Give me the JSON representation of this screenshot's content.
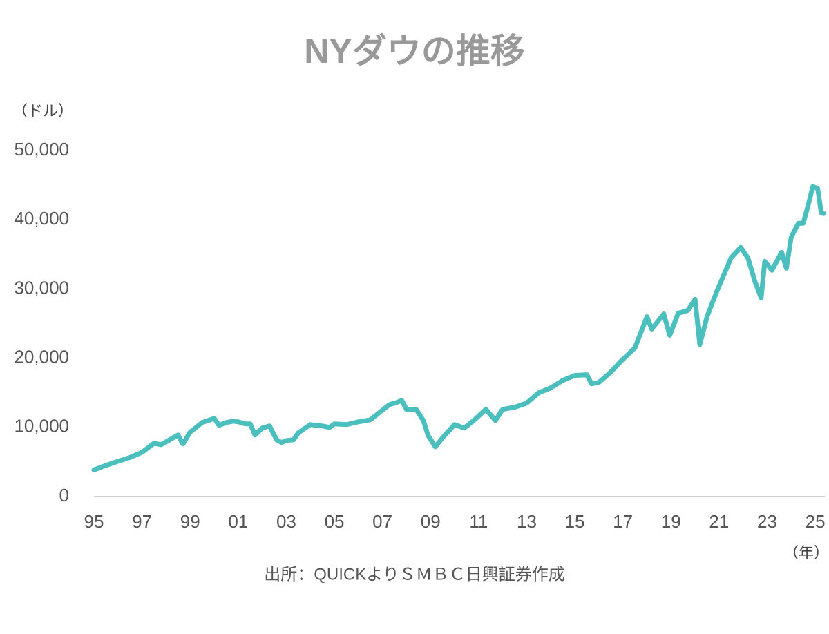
{
  "chart_data": {
    "type": "line",
    "title": "NYダウの推移",
    "y_label": "（ドル）",
    "x_label": "（年）",
    "source": "出所：QUICKよりＳＭＢＣ日興証券作成",
    "color": "#4bbfbe",
    "x": [
      1995.0,
      1995.5,
      1996.0,
      1996.5,
      1997.0,
      1997.5,
      1997.8,
      1998.0,
      1998.5,
      1998.7,
      1999.0,
      1999.5,
      2000.0,
      2000.2,
      2000.5,
      2000.8,
      2001.0,
      2001.3,
      2001.5,
      2001.7,
      2002.0,
      2002.3,
      2002.6,
      2002.8,
      2003.0,
      2003.3,
      2003.5,
      2004.0,
      2004.5,
      2004.8,
      2005.0,
      2005.5,
      2006.0,
      2006.5,
      2007.0,
      2007.3,
      2007.6,
      2007.8,
      2008.0,
      2008.4,
      2008.7,
      2008.9,
      2009.2,
      2009.5,
      2010.0,
      2010.4,
      2010.8,
      2011.3,
      2011.7,
      2012.0,
      2012.5,
      2013.0,
      2013.5,
      2014.0,
      2014.5,
      2015.0,
      2015.5,
      2015.7,
      2016.0,
      2016.5,
      2016.9,
      2017.5,
      2018.0,
      2018.2,
      2018.7,
      2018.95,
      2019.3,
      2019.7,
      2020.0,
      2020.2,
      2020.5,
      2020.9,
      2021.5,
      2021.9,
      2022.2,
      2022.5,
      2022.75,
      2022.9,
      2023.2,
      2023.6,
      2023.8,
      2024.0,
      2024.3,
      2024.5,
      2024.7,
      2024.9,
      2025.1,
      2025.25,
      2025.35
    ],
    "values": [
      3850,
      4500,
      5100,
      5650,
      6400,
      7700,
      7500,
      7900,
      8900,
      7600,
      9300,
      10700,
      11300,
      10300,
      10700,
      10900,
      10800,
      10500,
      10500,
      8900,
      9900,
      10200,
      8200,
      7800,
      8100,
      8200,
      9200,
      10400,
      10200,
      10000,
      10500,
      10400,
      10800,
      11100,
      12500,
      13300,
      13600,
      13900,
      12600,
      12600,
      11000,
      8800,
      7200,
      8500,
      10400,
      9900,
      11000,
      12600,
      11000,
      12600,
      12900,
      13500,
      15000,
      15700,
      16800,
      17500,
      17600,
      16300,
      16500,
      18000,
      19500,
      21500,
      26000,
      24200,
      26400,
      23300,
      26500,
      26900,
      28500,
      22000,
      26000,
      29600,
      34500,
      36000,
      34500,
      31000,
      28700,
      34000,
      32700,
      35300,
      33000,
      37500,
      39500,
      39500,
      42000,
      44800,
      44500,
      41000,
      40900
    ],
    "xlim": [
      1995,
      2025.4
    ],
    "xticks": [
      {
        "value": 1995,
        "label": "95"
      },
      {
        "value": 1997,
        "label": "97"
      },
      {
        "value": 1999,
        "label": "99"
      },
      {
        "value": 2001,
        "label": "01"
      },
      {
        "value": 2003,
        "label": "03"
      },
      {
        "value": 2005,
        "label": "05"
      },
      {
        "value": 2007,
        "label": "07"
      },
      {
        "value": 2009,
        "label": "09"
      },
      {
        "value": 2011,
        "label": "11"
      },
      {
        "value": 2013,
        "label": "13"
      },
      {
        "value": 2015,
        "label": "15"
      },
      {
        "value": 2017,
        "label": "17"
      },
      {
        "value": 2019,
        "label": "19"
      },
      {
        "value": 2021,
        "label": "21"
      },
      {
        "value": 2023,
        "label": "23"
      },
      {
        "value": 2025,
        "label": "25"
      }
    ],
    "ylim": [
      0,
      50000
    ],
    "yticks": [
      0,
      {
        "value": 10000,
        "label": "10,000"
      },
      {
        "value": 20000,
        "label": "20,000"
      },
      {
        "value": 30000,
        "label": "30,000"
      },
      {
        "value": 40000,
        "label": "40,000"
      },
      {
        "value": 50000,
        "label": "50,000"
      }
    ],
    "grid": false
  }
}
